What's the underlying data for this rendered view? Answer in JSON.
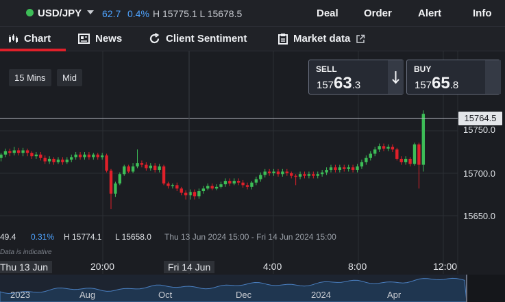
{
  "header": {
    "symbol": "USD/JPY",
    "change": "62.7",
    "change_pct": "0.4%",
    "high_low": "H 15775.1  L 15678.5",
    "nav": [
      "Deal",
      "Order",
      "Alert",
      "Info"
    ]
  },
  "tabs": [
    {
      "label": "Chart",
      "icon": "candles-icon",
      "active": true
    },
    {
      "label": "News",
      "icon": "newspaper-icon"
    },
    {
      "label": "Client Sentiment",
      "icon": "refresh-icon"
    },
    {
      "label": "Market data",
      "icon": "clipboard-icon"
    }
  ],
  "controls": {
    "interval": "15 Mins",
    "price_type": "Mid"
  },
  "trade": {
    "sell": {
      "label": "SELL",
      "pre": "157",
      "big": "63",
      "post": ".3"
    },
    "buy": {
      "label": "BUY",
      "pre": "157",
      "big": "65",
      "post": ".8"
    }
  },
  "current_price": "15764.5",
  "price_axis": [
    "15750.0",
    "15700.0",
    "15650.0"
  ],
  "stats": {
    "change": "49.4",
    "change_pct": "0.31%",
    "high": "H 15774.1",
    "low": "L 15658.0",
    "range": "Thu 13 Jun 2024 15:00 - Fri 14 Jun 2024 15:00"
  },
  "note": "Data is indicative",
  "time_axis": [
    "Thu 13 Jun",
    "20:00",
    "Fri 14 Jun",
    "4:00",
    "8:00",
    "12:00"
  ],
  "navigator_axis": [
    "2023",
    "Aug",
    "Oct",
    "Dec",
    "2024",
    "Apr"
  ],
  "colors": {
    "up": "#3dbd57",
    "down": "#e0202a",
    "accent": "#4ea3ff"
  },
  "chart_data": {
    "type": "candlestick",
    "current_price": 15764.5,
    "y_ticks": [
      15750.0,
      15700.0,
      15650.0
    ],
    "candles": [
      [
        15718,
        15722,
        15724,
        15714
      ],
      [
        15722,
        15726,
        15729,
        15719
      ],
      [
        15726,
        15724,
        15729,
        15720
      ],
      [
        15724,
        15727,
        15731,
        15721
      ],
      [
        15727,
        15724,
        15730,
        15721
      ],
      [
        15724,
        15727,
        15730,
        15720
      ],
      [
        15727,
        15724,
        15729,
        15720
      ],
      [
        15724,
        15720,
        15726,
        15717
      ],
      [
        15720,
        15722,
        15725,
        15717
      ],
      [
        15722,
        15718,
        15725,
        15715
      ],
      [
        15718,
        15714,
        15721,
        15711
      ],
      [
        15714,
        15717,
        15720,
        15711
      ],
      [
        15717,
        15713,
        15719,
        15710
      ],
      [
        15713,
        15716,
        15719,
        15711
      ],
      [
        15716,
        15713,
        15719,
        15710
      ],
      [
        15713,
        15716,
        15719,
        15711
      ],
      [
        15716,
        15719,
        15722,
        15713
      ],
      [
        15719,
        15722,
        15725,
        15716
      ],
      [
        15722,
        15719,
        15725,
        15716
      ],
      [
        15719,
        15722,
        15725,
        15716
      ],
      [
        15722,
        15719,
        15725,
        15716
      ],
      [
        15719,
        15722,
        15724,
        15716
      ],
      [
        15722,
        15719,
        15724,
        15716
      ],
      [
        15719,
        15721,
        15724,
        15716
      ],
      [
        15721,
        15703,
        15723,
        15701
      ],
      [
        15703,
        15676,
        15705,
        15658
      ],
      [
        15676,
        15688,
        15690,
        15672
      ],
      [
        15688,
        15699,
        15701,
        15686
      ],
      [
        15699,
        15708,
        15710,
        15697
      ],
      [
        15708,
        15702,
        15710,
        15700
      ],
      [
        15702,
        15708,
        15712,
        15700
      ],
      [
        15708,
        15712,
        15728,
        15706
      ],
      [
        15712,
        15710,
        15715,
        15707
      ],
      [
        15710,
        15706,
        15713,
        15703
      ],
      [
        15706,
        15709,
        15712,
        15703
      ],
      [
        15709,
        15704,
        15712,
        15701
      ],
      [
        15704,
        15708,
        15711,
        15701
      ],
      [
        15708,
        15688,
        15710,
        15686
      ],
      [
        15688,
        15685,
        15690,
        15682
      ],
      [
        15685,
        15686,
        15688,
        15682
      ],
      [
        15686,
        15682,
        15689,
        15679
      ],
      [
        15682,
        15677,
        15684,
        15674
      ],
      [
        15677,
        15674,
        15680,
        15669
      ],
      [
        15674,
        15678,
        15681,
        15669
      ],
      [
        15678,
        15673,
        15681,
        15669
      ],
      [
        15673,
        15679,
        15682,
        15670
      ],
      [
        15679,
        15682,
        15685,
        15676
      ],
      [
        15682,
        15685,
        15688,
        15680
      ],
      [
        15685,
        15682,
        15688,
        15680
      ],
      [
        15682,
        15684,
        15687,
        15680
      ],
      [
        15684,
        15687,
        15690,
        15682
      ],
      [
        15687,
        15691,
        15694,
        15684
      ],
      [
        15691,
        15688,
        15694,
        15685
      ],
      [
        15688,
        15691,
        15694,
        15686
      ],
      [
        15691,
        15689,
        15694,
        15686
      ],
      [
        15689,
        15686,
        15692,
        15683
      ],
      [
        15686,
        15684,
        15689,
        15681
      ],
      [
        15684,
        15689,
        15691,
        15681
      ],
      [
        15689,
        15693,
        15696,
        15686
      ],
      [
        15693,
        15698,
        15701,
        15690
      ],
      [
        15698,
        15702,
        15705,
        15695
      ],
      [
        15702,
        15700,
        15705,
        15697
      ],
      [
        15700,
        15702,
        15705,
        15697
      ],
      [
        15702,
        15699,
        15705,
        15696
      ],
      [
        15699,
        15702,
        15705,
        15696
      ],
      [
        15702,
        15700,
        15705,
        15697
      ],
      [
        15700,
        15697,
        15702,
        15694
      ],
      [
        15697,
        15696,
        15699,
        15686
      ],
      [
        15696,
        15699,
        15702,
        15693
      ],
      [
        15699,
        15697,
        15702,
        15694
      ],
      [
        15697,
        15699,
        15702,
        15694
      ],
      [
        15699,
        15697,
        15702,
        15694
      ],
      [
        15697,
        15699,
        15702,
        15694
      ],
      [
        15699,
        15701,
        15704,
        15696
      ],
      [
        15701,
        15704,
        15707,
        15698
      ],
      [
        15704,
        15707,
        15710,
        15701
      ],
      [
        15707,
        15704,
        15710,
        15701
      ],
      [
        15704,
        15707,
        15710,
        15701
      ],
      [
        15707,
        15705,
        15710,
        15702
      ],
      [
        15705,
        15707,
        15710,
        15702
      ],
      [
        15707,
        15704,
        15710,
        15701
      ],
      [
        15704,
        15708,
        15711,
        15701
      ],
      [
        15708,
        15713,
        15716,
        15705
      ],
      [
        15713,
        15718,
        15721,
        15710
      ],
      [
        15718,
        15723,
        15726,
        15715
      ],
      [
        15723,
        15728,
        15731,
        15720
      ],
      [
        15728,
        15732,
        15735,
        15725
      ],
      [
        15732,
        15729,
        15735,
        15726
      ],
      [
        15729,
        15731,
        15734,
        15726
      ],
      [
        15731,
        15728,
        15734,
        15725
      ],
      [
        15728,
        15717,
        15730,
        15715
      ],
      [
        15717,
        15713,
        15720,
        15710
      ],
      [
        15713,
        15717,
        15720,
        15710
      ],
      [
        15717,
        15711,
        15719,
        15708
      ],
      [
        15711,
        15734,
        15736,
        15709
      ],
      [
        15734,
        15710,
        15736,
        15682
      ],
      [
        15710,
        15770,
        15774,
        15702
      ]
    ]
  }
}
